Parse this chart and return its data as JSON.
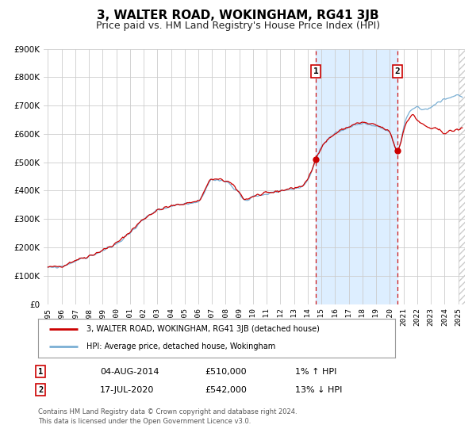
{
  "title": "3, WALTER ROAD, WOKINGHAM, RG41 3JB",
  "subtitle": "Price paid vs. HM Land Registry's House Price Index (HPI)",
  "ylim": [
    0,
    900000
  ],
  "yticks": [
    0,
    100000,
    200000,
    300000,
    400000,
    500000,
    600000,
    700000,
    800000,
    900000
  ],
  "ytick_labels": [
    "£0",
    "£100K",
    "£200K",
    "£300K",
    "£400K",
    "£500K",
    "£600K",
    "£700K",
    "£800K",
    "£900K"
  ],
  "xlim_start": 1994.7,
  "xlim_end": 2025.5,
  "background_color": "#ffffff",
  "plot_bg_color": "#ffffff",
  "grid_color": "#cccccc",
  "shade_color": "#ddeeff",
  "hatch_color": "#cccccc",
  "sale1_x": 2014.587,
  "sale1_y": 510000,
  "sale2_x": 2020.54,
  "sale2_y": 542000,
  "sale1_label": "1",
  "sale1_date": "04-AUG-2014",
  "sale1_price": "£510,000",
  "sale1_hpi": "1% ↑ HPI",
  "sale2_label": "2",
  "sale2_date": "17-JUL-2020",
  "sale2_price": "£542,000",
  "sale2_hpi": "13% ↓ HPI",
  "legend_line1": "3, WALTER ROAD, WOKINGHAM, RG41 3JB (detached house)",
  "legend_line2": "HPI: Average price, detached house, Wokingham",
  "footer1": "Contains HM Land Registry data © Crown copyright and database right 2024.",
  "footer2": "This data is licensed under the Open Government Licence v3.0.",
  "hpi_color": "#7aafd4",
  "price_color": "#cc0000",
  "sale_dot_color": "#cc0000",
  "vline_color": "#cc0000",
  "box_color": "#cc0000",
  "title_fontsize": 11,
  "subtitle_fontsize": 9
}
